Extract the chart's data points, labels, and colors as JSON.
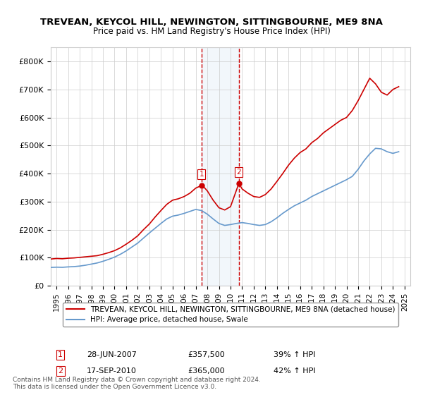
{
  "title": "TREVEAN, KEYCOL HILL, NEWINGTON, SITTINGBOURNE, ME9 8NA",
  "subtitle": "Price paid vs. HM Land Registry's House Price Index (HPI)",
  "legend_line1": "TREVEAN, KEYCOL HILL, NEWINGTON, SITTINGBOURNE, ME9 8NA (detached house)",
  "legend_line2": "HPI: Average price, detached house, Swale",
  "footer": "Contains HM Land Registry data © Crown copyright and database right 2024.\nThis data is licensed under the Open Government Licence v3.0.",
  "sale1_date": "28-JUN-2007",
  "sale1_price": 357500,
  "sale1_hpi": "39% ↑ HPI",
  "sale2_date": "17-SEP-2010",
  "sale2_price": 365000,
  "sale2_hpi": "42% ↑ HPI",
  "sale1_year": 2007.49,
  "sale2_year": 2010.72,
  "red_color": "#cc0000",
  "blue_color": "#6699cc",
  "dashed_color": "#cc0000",
  "shaded_color": "#cce0f0",
  "ylim": [
    0,
    850000
  ],
  "xlim_start": 1994.5,
  "xlim_end": 2025.5,
  "yticks": [
    0,
    100000,
    200000,
    300000,
    400000,
    500000,
    600000,
    700000,
    800000
  ],
  "ytick_labels": [
    "£0",
    "£100K",
    "£200K",
    "£300K",
    "£400K",
    "£500K",
    "£600K",
    "£700K",
    "£800K"
  ],
  "xticks": [
    1995,
    1996,
    1997,
    1998,
    1999,
    2000,
    2001,
    2002,
    2003,
    2004,
    2005,
    2006,
    2007,
    2008,
    2009,
    2010,
    2011,
    2012,
    2013,
    2014,
    2015,
    2016,
    2017,
    2018,
    2019,
    2020,
    2021,
    2022,
    2023,
    2024,
    2025
  ],
  "red_x": [
    1994.5,
    1995.0,
    1995.5,
    1996.0,
    1996.5,
    1997.0,
    1997.5,
    1998.0,
    1998.5,
    1999.0,
    1999.5,
    2000.0,
    2000.5,
    2001.0,
    2001.5,
    2002.0,
    2002.5,
    2003.0,
    2003.5,
    2004.0,
    2004.5,
    2005.0,
    2005.5,
    2006.0,
    2006.5,
    2007.0,
    2007.49,
    2007.7,
    2008.0,
    2008.5,
    2009.0,
    2009.5,
    2010.0,
    2010.72,
    2011.0,
    2011.5,
    2012.0,
    2012.5,
    2013.0,
    2013.5,
    2014.0,
    2014.5,
    2015.0,
    2015.5,
    2016.0,
    2016.5,
    2017.0,
    2017.5,
    2018.0,
    2018.5,
    2019.0,
    2019.5,
    2020.0,
    2020.5,
    2021.0,
    2021.5,
    2022.0,
    2022.5,
    2023.0,
    2023.5,
    2024.0,
    2024.5
  ],
  "red_y": [
    95000,
    97000,
    96000,
    98000,
    99000,
    101000,
    103000,
    105000,
    107000,
    112000,
    118000,
    125000,
    135000,
    148000,
    162000,
    178000,
    200000,
    220000,
    245000,
    268000,
    290000,
    305000,
    310000,
    318000,
    330000,
    348000,
    357500,
    352000,
    338000,
    305000,
    278000,
    270000,
    282000,
    365000,
    345000,
    330000,
    318000,
    315000,
    325000,
    345000,
    372000,
    400000,
    430000,
    455000,
    475000,
    488000,
    510000,
    525000,
    545000,
    560000,
    575000,
    590000,
    600000,
    625000,
    660000,
    700000,
    740000,
    720000,
    690000,
    680000,
    700000,
    710000
  ],
  "blue_x": [
    1994.5,
    1995.0,
    1995.5,
    1996.0,
    1996.5,
    1997.0,
    1997.5,
    1998.0,
    1998.5,
    1999.0,
    1999.5,
    2000.0,
    2000.5,
    2001.0,
    2001.5,
    2002.0,
    2002.5,
    2003.0,
    2003.5,
    2004.0,
    2004.5,
    2005.0,
    2005.5,
    2006.0,
    2006.5,
    2007.0,
    2007.5,
    2008.0,
    2008.5,
    2009.0,
    2009.5,
    2010.0,
    2010.5,
    2011.0,
    2011.5,
    2012.0,
    2012.5,
    2013.0,
    2013.5,
    2014.0,
    2014.5,
    2015.0,
    2015.5,
    2016.0,
    2016.5,
    2017.0,
    2017.5,
    2018.0,
    2018.5,
    2019.0,
    2019.5,
    2020.0,
    2020.5,
    2021.0,
    2021.5,
    2022.0,
    2022.5,
    2023.0,
    2023.5,
    2024.0,
    2024.5
  ],
  "blue_y": [
    65000,
    66000,
    65500,
    67000,
    68000,
    70000,
    73000,
    77000,
    81000,
    87000,
    94000,
    102000,
    112000,
    124000,
    138000,
    152000,
    170000,
    188000,
    205000,
    222000,
    238000,
    248000,
    252000,
    258000,
    265000,
    272000,
    268000,
    255000,
    238000,
    222000,
    215000,
    218000,
    222000,
    225000,
    222000,
    218000,
    215000,
    218000,
    228000,
    242000,
    258000,
    272000,
    285000,
    295000,
    305000,
    318000,
    328000,
    338000,
    348000,
    358000,
    368000,
    378000,
    390000,
    415000,
    445000,
    470000,
    490000,
    488000,
    478000,
    472000,
    478000
  ]
}
